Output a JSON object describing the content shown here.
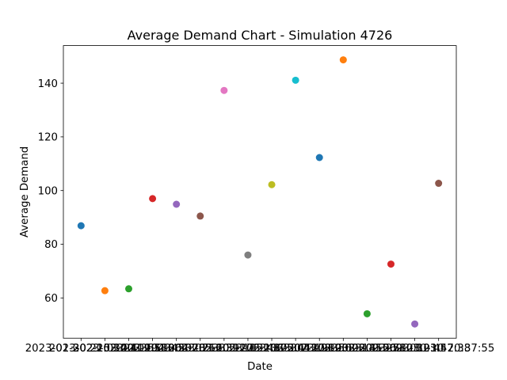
{
  "chart_data": {
    "type": "scatter",
    "title": "Average Demand Chart - Simulation 4726",
    "xlabel": "Date",
    "ylabel": "Average Demand",
    "ylim": [
      45,
      154
    ],
    "yticks": [
      60,
      80,
      100,
      120,
      140
    ],
    "grid": false,
    "legend": "none",
    "points": [
      {
        "x": "2023-01-30 21:03:21",
        "y": 86.9,
        "color": "#1f77b4"
      },
      {
        "x": "2023-02-15 14:41:55",
        "y": 62.7,
        "color": "#ff7f0e"
      },
      {
        "x": "2023-03-02 09:18:42",
        "y": 63.4,
        "color": "#2ca02c"
      },
      {
        "x": "2023-03-19 18:53:07",
        "y": 97.0,
        "color": "#d62728"
      },
      {
        "x": "2023-04-06 07:26:33",
        "y": 94.9,
        "color": "#9467bd"
      },
      {
        "x": "2023-04-23 16:39:11",
        "y": 90.5,
        "color": "#8c564b"
      },
      {
        "x": "2023-05-10 11:05:48",
        "y": 137.3,
        "color": "#e377c2"
      },
      {
        "x": "2023-05-27 22:17:30",
        "y": 76.0,
        "color": "#7f7f7f"
      },
      {
        "x": "2023-06-13 05:44:19",
        "y": 102.2,
        "color": "#bcbd22"
      },
      {
        "x": "2023-06-30 13:28:56",
        "y": 141.1,
        "color": "#17becf"
      },
      {
        "x": "2023-07-17 19:02:14",
        "y": 112.3,
        "color": "#1f77b4"
      },
      {
        "x": "2023-08-03 08:35:27",
        "y": 148.7,
        "color": "#ff7f0e"
      },
      {
        "x": "2023-08-20 15:58:03",
        "y": 54.1,
        "color": "#2ca02c"
      },
      {
        "x": "2023-09-06 10:12:45",
        "y": 72.6,
        "color": "#d62728"
      },
      {
        "x": "2023-09-23 03:47:38",
        "y": 50.3,
        "color": "#9467bd"
      },
      {
        "x": "2023-10-10 20:37:55",
        "y": 102.7,
        "color": "#8c564b"
      }
    ]
  }
}
